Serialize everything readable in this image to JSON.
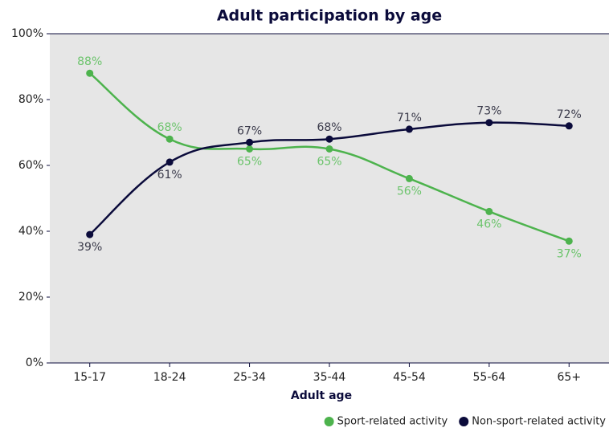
{
  "chart_data": {
    "type": "line",
    "title": "Adult participation by age",
    "x_label": "Adult age",
    "categories": [
      "15-17",
      "18-24",
      "25-34",
      "35-44",
      "45-54",
      "55-64",
      "65+"
    ],
    "series": [
      {
        "name": "Sport-related activity",
        "color": "#4db34d",
        "label_color": "#6cc46c",
        "values": [
          88,
          68,
          65,
          65,
          56,
          46,
          37
        ],
        "value_labels": [
          "88%",
          "68%",
          "65%",
          "65%",
          "56%",
          "46%",
          "37%"
        ]
      },
      {
        "name": "Non-sport-related activity",
        "color": "#0b0b3b",
        "label_color": "#3a3a4a",
        "values": [
          39,
          61,
          67,
          68,
          71,
          73,
          72
        ],
        "value_labels": [
          "39%",
          "61%",
          "67%",
          "68%",
          "71%",
          "73%",
          "72%"
        ]
      }
    ],
    "ylim": [
      0,
      100
    ],
    "yticks": [
      {
        "value": 0,
        "label": "0%"
      },
      {
        "value": 20,
        "label": "20%"
      },
      {
        "value": 40,
        "label": "40%"
      },
      {
        "value": 60,
        "label": "60%"
      },
      {
        "value": 80,
        "label": "80%"
      },
      {
        "value": 100,
        "label": "100%"
      }
    ],
    "grid": false,
    "legend": "bottom-right",
    "plot_background": "#e6e6e6"
  }
}
